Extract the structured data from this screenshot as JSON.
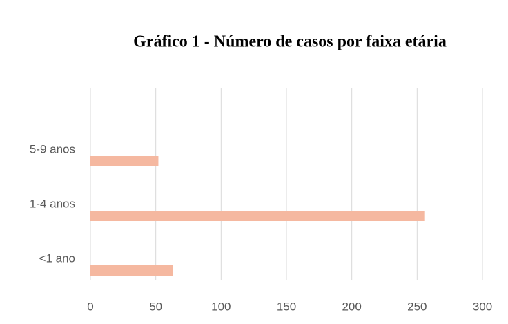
{
  "chart_data": {
    "type": "hbar",
    "title": "Gráfico 1 - Número de casos por faixa etária",
    "categories": [
      "<1 ano",
      "1-4 anos",
      "5-9 anos"
    ],
    "values": [
      63,
      256,
      52
    ],
    "color": "#f5b8a0",
    "xlim": [
      0,
      300
    ],
    "xticks": [
      0,
      50,
      100,
      150,
      200,
      250,
      300
    ],
    "grid": true
  }
}
